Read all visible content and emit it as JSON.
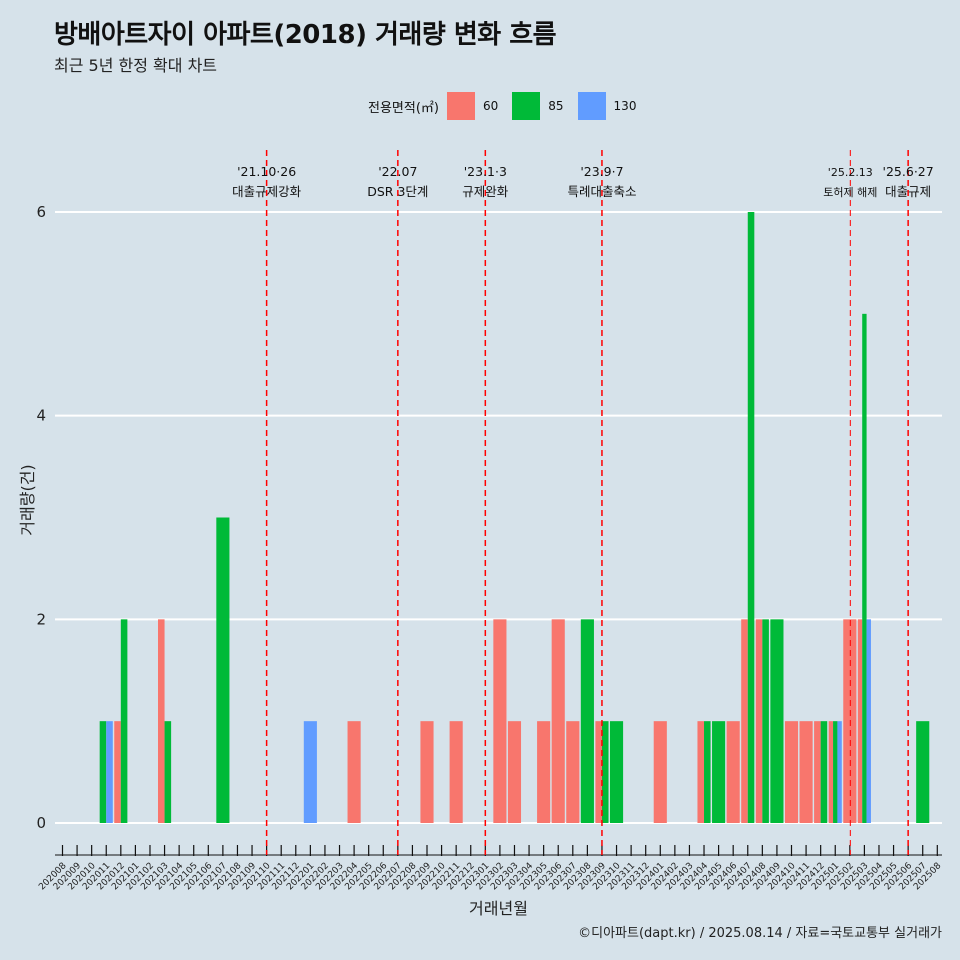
{
  "title": "방배아트자이 아파트(2018) 거래량 변화 흐름",
  "subtitle": "최근 5년 한정 확대 차트",
  "caption": "©디아파트(dapt.kr) / 2025.08.14 / 자료=국토교통부 실거래가",
  "legend": {
    "title": "전용면적(㎡)",
    "items": [
      {
        "label": "60",
        "color": "#f8766d"
      },
      {
        "label": "85",
        "color": "#00ba38"
      },
      {
        "label": "130",
        "color": "#619cff"
      }
    ]
  },
  "chart_data": {
    "type": "bar",
    "xlabel": "거래년월",
    "ylabel": "거래량(건)",
    "ylim": [
      0,
      6
    ],
    "yticks": [
      0,
      2,
      4,
      6
    ],
    "categories": [
      "202008",
      "202009",
      "202010",
      "202011",
      "202012",
      "202101",
      "202102",
      "202103",
      "202104",
      "202105",
      "202106",
      "202107",
      "202108",
      "202109",
      "202110",
      "202111",
      "202112",
      "202201",
      "202202",
      "202203",
      "202204",
      "202205",
      "202206",
      "202207",
      "202208",
      "202209",
      "202210",
      "202211",
      "202212",
      "202301",
      "202302",
      "202303",
      "202304",
      "202305",
      "202306",
      "202307",
      "202308",
      "202309",
      "202310",
      "202311",
      "202312",
      "202401",
      "202402",
      "202403",
      "202404",
      "202405",
      "202406",
      "202407",
      "202408",
      "202409",
      "202410",
      "202411",
      "202412",
      "202501",
      "202502",
      "202503",
      "202504",
      "202505",
      "202506",
      "202507",
      "202508"
    ],
    "series": [
      {
        "name": "60",
        "color": "#f8766d",
        "values": [
          0,
          0,
          0,
          0,
          1,
          0,
          0,
          2,
          0,
          0,
          0,
          0,
          0,
          0,
          0,
          0,
          0,
          0,
          0,
          0,
          1,
          0,
          0,
          0,
          0,
          1,
          0,
          1,
          0,
          0,
          2,
          1,
          0,
          1,
          2,
          1,
          0,
          1,
          0,
          0,
          0,
          1,
          0,
          0,
          1,
          0,
          1,
          2,
          2,
          0,
          1,
          1,
          1,
          1,
          2,
          2,
          0,
          0,
          0,
          0,
          0
        ]
      },
      {
        "name": "85",
        "color": "#00ba38",
        "values": [
          0,
          0,
          0,
          1,
          2,
          0,
          0,
          1,
          0,
          0,
          0,
          3,
          0,
          0,
          0,
          0,
          0,
          0,
          0,
          0,
          0,
          0,
          0,
          0,
          0,
          0,
          0,
          0,
          0,
          0,
          0,
          0,
          0,
          0,
          0,
          0,
          2,
          1,
          1,
          0,
          0,
          0,
          0,
          0,
          1,
          1,
          0,
          6,
          2,
          2,
          0,
          0,
          1,
          1,
          0,
          5,
          0,
          0,
          0,
          1,
          0
        ]
      },
      {
        "name": "130",
        "color": "#619cff",
        "values": [
          0,
          0,
          0,
          1,
          0,
          0,
          0,
          0,
          0,
          0,
          0,
          0,
          0,
          0,
          0,
          0,
          0,
          1,
          0,
          0,
          0,
          0,
          0,
          0,
          0,
          0,
          0,
          0,
          0,
          0,
          0,
          0,
          0,
          0,
          0,
          0,
          0,
          0,
          0,
          0,
          0,
          0,
          0,
          0,
          0,
          0,
          0,
          0,
          0,
          0,
          0,
          0,
          0,
          1,
          0,
          2,
          0,
          0,
          0,
          0,
          0
        ]
      }
    ],
    "annotations": [
      {
        "at": "202110",
        "date": "'21.10·26",
        "label": "대출규제강화"
      },
      {
        "at": "202207",
        "date": "'22.07",
        "label": "DSR 3단계"
      },
      {
        "at": "202301",
        "date": "'23.1·3",
        "label": "규제완화"
      },
      {
        "at": "202309",
        "date": "'23.9·7",
        "label": "특례대출축소"
      },
      {
        "at": "202502",
        "date": "'25.2.13",
        "label": "토허제 해제",
        "small": true
      },
      {
        "at": "202506",
        "date": "'25.6·27",
        "label": "대출규제"
      }
    ]
  }
}
